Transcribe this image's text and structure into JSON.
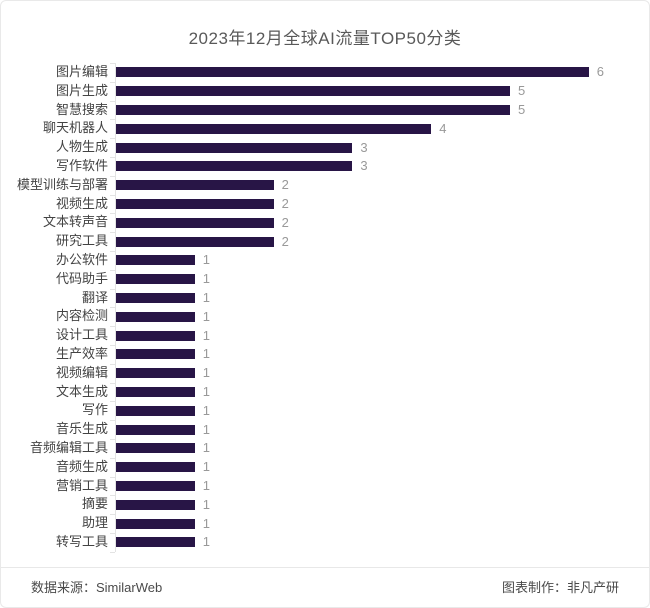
{
  "chart_data": {
    "type": "bar",
    "orientation": "horizontal",
    "title": "2023年12月全球AI流量TOP50分类",
    "categories": [
      "图片编辑",
      "图片生成",
      "智慧搜索",
      "聊天机器人",
      "人物生成",
      "写作软件",
      "模型训练与部署",
      "视频生成",
      "文本转声音",
      "研究工具",
      "办公软件",
      "代码助手",
      "翻译",
      "内容检测",
      "设计工具",
      "生产效率",
      "视频编辑",
      "文本生成",
      "写作",
      "音乐生成",
      "音频编辑工具",
      "音频生成",
      "营销工具",
      "摘要",
      "助理",
      "转写工具"
    ],
    "values": [
      6,
      5,
      5,
      4,
      3,
      3,
      2,
      2,
      2,
      2,
      1,
      1,
      1,
      1,
      1,
      1,
      1,
      1,
      1,
      1,
      1,
      1,
      1,
      1,
      1,
      1
    ],
    "xlim": [
      0,
      6
    ],
    "xlabel": "",
    "ylabel": "",
    "grid": false,
    "legend": false,
    "value_labels_shown": true
  },
  "footer": {
    "source": "数据来源：SimilarWeb",
    "credit": "图表制作：非凡产研"
  },
  "colors": {
    "bar": "#281546",
    "title_text": "#595959",
    "category_text": "#434343",
    "value_text": "#999999",
    "axis": "#e3e3e3",
    "border": "#e9e9e9"
  }
}
